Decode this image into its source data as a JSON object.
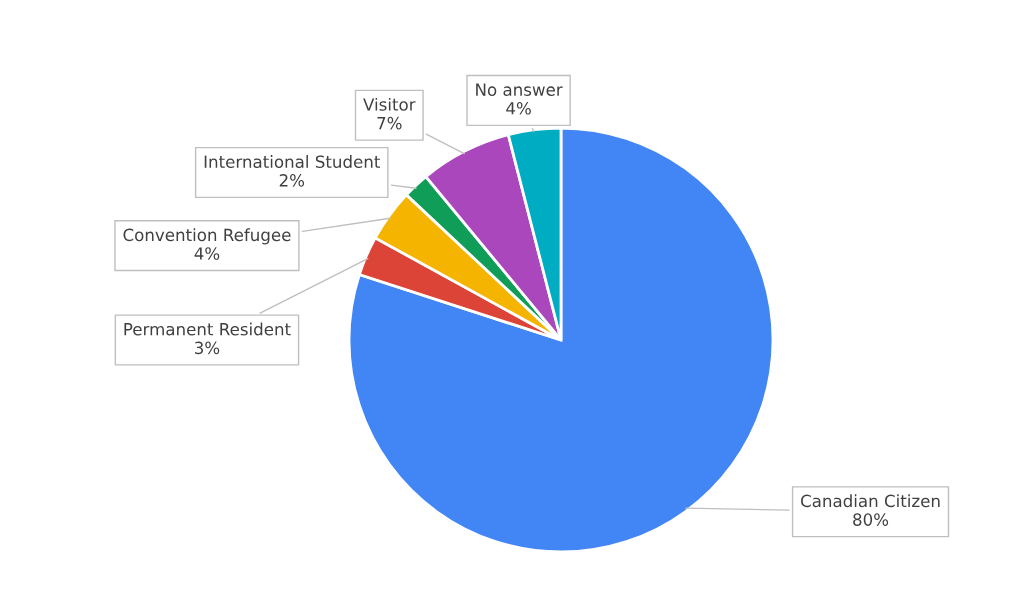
{
  "chart_data": {
    "type": "pie",
    "categories": [
      "Canadian Citizen",
      "Permanent Resident",
      "Convention Refugee",
      "International Student",
      "Visitor",
      "No answer"
    ],
    "values": [
      80,
      3,
      4,
      2,
      7,
      4
    ],
    "value_labels": [
      "80%",
      "3%",
      "4%",
      "2%",
      "7%",
      "4%"
    ],
    "colors": [
      "#4285f4",
      "#db4437",
      "#f4b400",
      "#0f9d58",
      "#ab47bc",
      "#00acc1"
    ],
    "legend": false
  }
}
